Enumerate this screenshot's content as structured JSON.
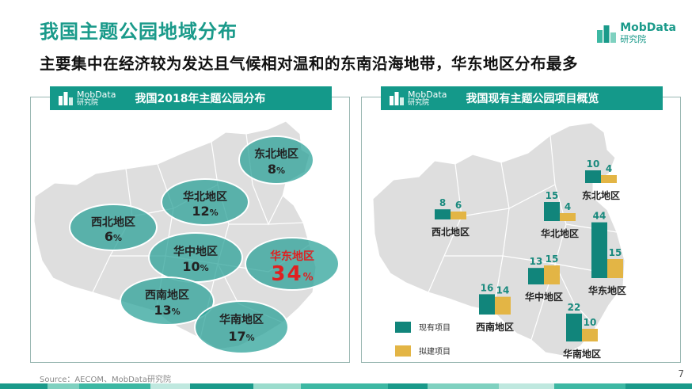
{
  "title": "我国主题公园地域分布",
  "subtitle": "主要集中在经济较为发达且气候相对温和的东南沿海地带，华东地区分布最多",
  "brand": {
    "name": "MobData",
    "sub": "研究院"
  },
  "colors": {
    "accent": "#14998a",
    "current": "#11857b",
    "planned": "#e3b545",
    "highlight": "#e02020",
    "map": "#dedede"
  },
  "left_panel": {
    "header": {
      "brand_name": "MobData",
      "brand_sub": "研究院",
      "title": "我国2018年主题公园分布"
    },
    "regions": [
      {
        "name": "东北地区",
        "value": 8,
        "unit": "%",
        "highlight": false
      },
      {
        "name": "华北地区",
        "value": 12,
        "unit": "%",
        "highlight": false
      },
      {
        "name": "西北地区",
        "value": 6,
        "unit": "%",
        "highlight": false
      },
      {
        "name": "华中地区",
        "value": 10,
        "unit": "%",
        "highlight": false
      },
      {
        "name": "华东地区",
        "value": 34,
        "unit": "%",
        "highlight": true
      },
      {
        "name": "西南地区",
        "value": 13,
        "unit": "%",
        "highlight": false
      },
      {
        "name": "华南地区",
        "value": 17,
        "unit": "%",
        "highlight": false
      }
    ]
  },
  "right_panel": {
    "header": {
      "brand_name": "MobData",
      "brand_sub": "研究院",
      "title": "我国现有主题公园项目概览"
    },
    "legend": {
      "current": "现有项目",
      "planned": "拟建项目"
    }
  },
  "chart_data": [
    {
      "type": "bubble-map",
      "title": "我国2018年主题公园分布",
      "unit": "%",
      "categories": [
        "东北地区",
        "华北地区",
        "西北地区",
        "华中地区",
        "华东地区",
        "西南地区",
        "华南地区"
      ],
      "values": [
        8,
        12,
        6,
        10,
        34,
        13,
        17
      ]
    },
    {
      "type": "bar",
      "title": "我国现有主题公园项目概览",
      "categories": [
        "西北地区",
        "华北地区",
        "东北地区",
        "华中地区",
        "华东地区",
        "西南地区",
        "华南地区"
      ],
      "series": [
        {
          "name": "现有项目",
          "values": [
            8,
            15,
            10,
            13,
            44,
            16,
            22
          ]
        },
        {
          "name": "拟建项目",
          "values": [
            6,
            4,
            4,
            15,
            15,
            14,
            10
          ]
        }
      ]
    }
  ],
  "source": "Source：AECOM、MobData研究院",
  "page_number": "7"
}
